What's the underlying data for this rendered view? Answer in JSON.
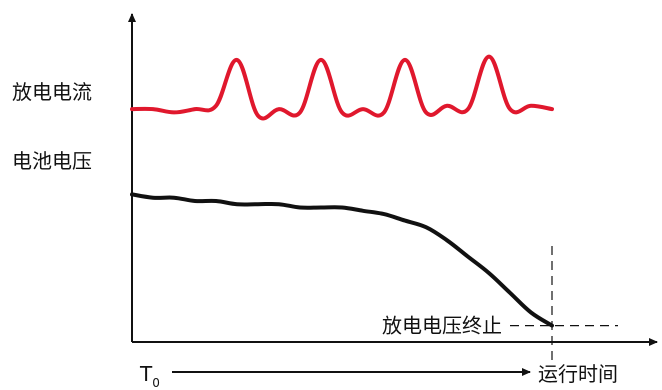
{
  "chart_data": {
    "type": "line",
    "title": "",
    "xlabel": "运行时间",
    "ylabel": "",
    "x_start_label": "T",
    "x_start_subscript": "0",
    "x": [
      0,
      5,
      10,
      15,
      20,
      25,
      30,
      35,
      40,
      45,
      50,
      55,
      60,
      65,
      70,
      75,
      80,
      85,
      90,
      95,
      100
    ],
    "series": [
      {
        "name": "放电电流",
        "color": "#e0182d",
        "values": [
          71,
          71,
          70,
          71,
          72,
          86,
          69,
          71,
          70,
          86,
          70,
          71,
          70,
          86,
          70,
          72,
          71,
          87,
          71,
          72,
          71
        ]
      },
      {
        "name": "电池电压",
        "color": "#111111",
        "values": [
          45,
          44,
          44,
          43,
          43,
          42,
          42,
          42,
          41,
          41,
          41,
          40,
          39,
          37,
          35,
          31,
          26,
          21,
          15,
          9,
          5
        ]
      }
    ],
    "annotations": [
      {
        "text": "放电电压终止",
        "at_x": 100
      }
    ],
    "ylim": [
      0,
      100
    ],
    "xlim": [
      0,
      100
    ],
    "grid": false
  }
}
